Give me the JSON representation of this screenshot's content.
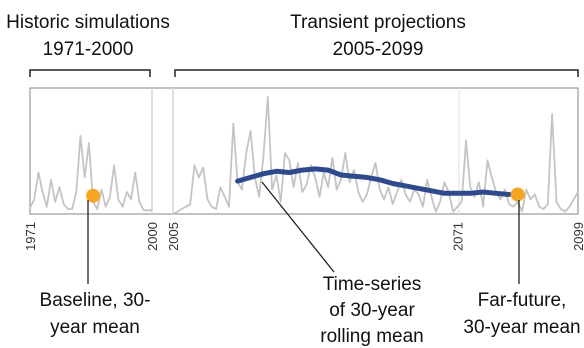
{
  "headers": {
    "historic": {
      "line1": "Historic simulations",
      "line2": "1971-2000"
    },
    "projection": {
      "line1": "Transient projections",
      "line2": "2005-2099"
    }
  },
  "axis": {
    "ticks": [
      {
        "key": "t1971",
        "label": "1971",
        "year": 1971
      },
      {
        "key": "t2000",
        "label": "2000",
        "year": 2000
      },
      {
        "key": "t2005",
        "label": "2005",
        "year": 2005
      },
      {
        "key": "t2071",
        "label": "2071",
        "year": 2071
      },
      {
        "key": "t2099",
        "label": "2099",
        "year": 2099
      }
    ]
  },
  "annotations": {
    "baseline": {
      "line1": "Baseline, 30-",
      "line2": "year mean"
    },
    "rolling": {
      "line1": "Time-series",
      "line2": "of 30-year",
      "line3": "rolling mean"
    },
    "farfuture": {
      "line1": "Far-future,",
      "line2": "30-year mean"
    }
  },
  "colors": {
    "series": "#c4c4c4",
    "rolling": "#2e4a8c",
    "marker": "#f5a623",
    "frame": "#999999",
    "bracket": "#222222"
  },
  "chart_data": {
    "type": "line",
    "x_range": [
      1971,
      2099
    ],
    "y_range": [
      0,
      1
    ],
    "historic_series": {
      "x": [
        1971,
        1972,
        1973,
        1974,
        1975,
        1976,
        1977,
        1978,
        1979,
        1980,
        1981,
        1982,
        1983,
        1984,
        1985,
        1986,
        1987,
        1988,
        1989,
        1990,
        1991,
        1992,
        1993,
        1994,
        1995,
        1996,
        1997,
        1998,
        1999,
        2000
      ],
      "y": [
        0.05,
        0.12,
        0.34,
        0.18,
        0.06,
        0.28,
        0.1,
        0.22,
        0.08,
        0.04,
        0.04,
        0.18,
        0.64,
        0.3,
        0.58,
        0.1,
        0.04,
        0.2,
        0.06,
        0.14,
        0.4,
        0.12,
        0.06,
        0.18,
        0.12,
        0.34,
        0.1,
        0.03,
        0.03,
        0.03
      ]
    },
    "projection_series": {
      "x": [
        2005,
        2006,
        2007,
        2008,
        2009,
        2010,
        2011,
        2012,
        2013,
        2014,
        2015,
        2016,
        2017,
        2018,
        2019,
        2020,
        2021,
        2022,
        2023,
        2024,
        2025,
        2026,
        2027,
        2028,
        2029,
        2030,
        2031,
        2032,
        2033,
        2034,
        2035,
        2036,
        2037,
        2038,
        2039,
        2040,
        2041,
        2042,
        2043,
        2044,
        2045,
        2046,
        2047,
        2048,
        2049,
        2050,
        2051,
        2052,
        2053,
        2054,
        2055,
        2056,
        2057,
        2058,
        2059,
        2060,
        2061,
        2062,
        2063,
        2064,
        2065,
        2066,
        2067,
        2068,
        2069,
        2070,
        2071,
        2072,
        2073,
        2074,
        2075,
        2076,
        2077,
        2078,
        2079,
        2080,
        2081,
        2082,
        2083,
        2084,
        2085,
        2086,
        2087,
        2088,
        2089,
        2090,
        2091,
        2092,
        2093,
        2094,
        2095,
        2096,
        2097,
        2098,
        2099
      ],
      "y": [
        0.0,
        0.02,
        0.04,
        0.06,
        0.08,
        0.4,
        0.3,
        0.38,
        0.12,
        0.06,
        0.04,
        0.22,
        0.14,
        0.06,
        0.74,
        0.26,
        0.2,
        0.5,
        0.68,
        0.3,
        0.14,
        0.48,
        0.96,
        0.2,
        0.32,
        0.1,
        0.5,
        0.44,
        0.22,
        0.42,
        0.18,
        0.24,
        0.4,
        0.3,
        0.14,
        0.34,
        0.22,
        0.46,
        0.2,
        0.28,
        0.5,
        0.26,
        0.36,
        0.18,
        0.1,
        0.16,
        0.3,
        0.42,
        0.2,
        0.12,
        0.22,
        0.08,
        0.18,
        0.28,
        0.16,
        0.1,
        0.2,
        0.16,
        0.06,
        0.28,
        0.14,
        0.02,
        0.1,
        0.26,
        0.18,
        0.02,
        0.06,
        0.1,
        0.6,
        0.22,
        0.14,
        0.26,
        0.06,
        0.44,
        0.3,
        0.18,
        0.12,
        0.2,
        0.08,
        0.06,
        0.1,
        0.02,
        0.2,
        0.12,
        0.16,
        0.06,
        0.04,
        0.08,
        0.82,
        0.1,
        0.04,
        0.02,
        0.06,
        0.12,
        0.18
      ]
    },
    "rolling_mean": {
      "x": [
        2020,
        2023,
        2026,
        2029,
        2032,
        2035,
        2038,
        2041,
        2044,
        2047,
        2050,
        2053,
        2056,
        2059,
        2062,
        2065,
        2068,
        2071,
        2074,
        2077,
        2080,
        2083
      ],
      "y": [
        0.27,
        0.3,
        0.33,
        0.35,
        0.34,
        0.36,
        0.37,
        0.36,
        0.32,
        0.31,
        0.3,
        0.28,
        0.25,
        0.23,
        0.21,
        0.19,
        0.17,
        0.17,
        0.17,
        0.18,
        0.17,
        0.16
      ]
    },
    "baseline_mean": {
      "x": 1986,
      "y": 0.15
    },
    "far_future_mean": {
      "x": 2085,
      "y": 0.16
    }
  }
}
